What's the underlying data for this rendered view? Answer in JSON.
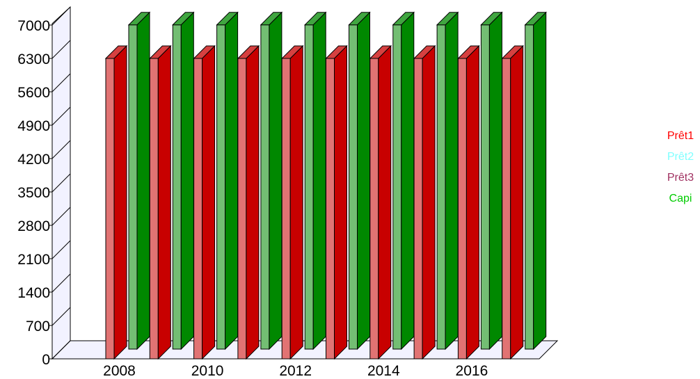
{
  "chart_data": {
    "type": "bar",
    "style": "3d",
    "x": [
      2008,
      2009,
      2010,
      2011,
      2012,
      2013,
      2014,
      2015,
      2016,
      2017
    ],
    "x_tick_labels": [
      "2008",
      "2010",
      "2012",
      "2014",
      "2016"
    ],
    "y_ticks": [
      0,
      700,
      1400,
      2100,
      2800,
      3500,
      4200,
      4900,
      5600,
      6300,
      7000
    ],
    "ylim": [
      0,
      7000
    ],
    "legend_position": "right",
    "series": [
      {
        "name": "Prêt1",
        "color": "#ff0000",
        "bar_color": "#c80000",
        "values": [
          6300,
          6300,
          6300,
          6300,
          6300,
          6300,
          6300,
          6300,
          6300,
          6300
        ]
      },
      {
        "name": "Prêt2",
        "color": "#80ffff",
        "values": [
          0,
          0,
          0,
          0,
          0,
          0,
          0,
          0,
          0,
          0
        ]
      },
      {
        "name": "Prêt3",
        "color": "#a03060",
        "values": [
          0,
          0,
          0,
          0,
          0,
          0,
          0,
          0,
          0,
          0
        ]
      },
      {
        "name": "Capi",
        "color": "#00cc00",
        "bar_color": "#008800",
        "values": [
          6800,
          6800,
          6800,
          6800,
          6800,
          6800,
          6800,
          6800,
          6800,
          6800
        ]
      }
    ]
  }
}
